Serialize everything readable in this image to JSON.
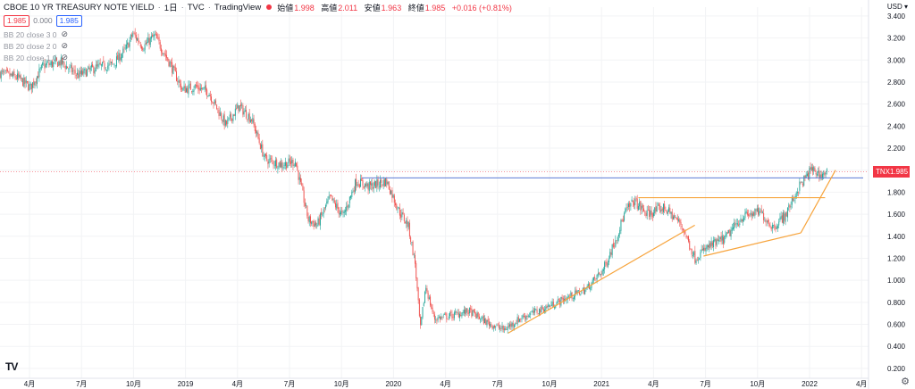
{
  "header": {
    "symbol": "CBOE 10 YR TREASURY NOTE YIELD",
    "interval": "1日",
    "source": "TVC",
    "platform": "TradingView",
    "ohlc": [
      {
        "k": "始値",
        "v": "1.998"
      },
      {
        "k": "高値",
        "v": "2.011"
      },
      {
        "k": "安値",
        "v": "1.963"
      },
      {
        "k": "終値",
        "v": "1.985"
      }
    ],
    "change": "+0.016 (+0.81%)"
  },
  "quote": {
    "sell": "1.985",
    "spread": "0.000",
    "buy": "1.985"
  },
  "indicators": [
    "BB 20 close 3 0",
    "BB 20 close 2 0",
    "BB 20 close 1 0"
  ],
  "currency": "USD",
  "price_tag": {
    "symbol": "TNX",
    "value": "1.985"
  },
  "logo_text": "TV",
  "colors": {
    "up": "#26a69a",
    "down": "#ef5350",
    "trend": "#f7a43c",
    "hline": "#5b7bd5",
    "last": "#f23645"
  },
  "chart_data": {
    "type": "candlestick",
    "y_axis_ticks": [
      "3.400",
      "3.200",
      "3.000",
      "2.800",
      "2.600",
      "2.400",
      "2.200",
      "2.000",
      "1.800",
      "1.600",
      "1.400",
      "1.200",
      "1.000",
      "0.800",
      "0.600",
      "0.400",
      "0.200"
    ],
    "x_axis_ticks": [
      "4月",
      "7月",
      "10月",
      "2019",
      "4月",
      "7月",
      "10月",
      "2020",
      "4月",
      "7月",
      "10月",
      "2021",
      "4月",
      "7月",
      "10月",
      "2022",
      "4月"
    ],
    "ylim": [
      0.11,
      3.48
    ],
    "last_price": 1.985,
    "horizontal_line": 1.93,
    "price_path": [
      {
        "t": 0.0,
        "p": 2.88
      },
      {
        "t": 0.02,
        "p": 2.84
      },
      {
        "t": 0.035,
        "p": 2.75
      },
      {
        "t": 0.05,
        "p": 2.95
      },
      {
        "t": 0.07,
        "p": 2.98
      },
      {
        "t": 0.09,
        "p": 2.86
      },
      {
        "t": 0.11,
        "p": 2.93
      },
      {
        "t": 0.13,
        "p": 2.96
      },
      {
        "t": 0.145,
        "p": 3.1
      },
      {
        "t": 0.153,
        "p": 3.24
      },
      {
        "t": 0.165,
        "p": 3.12
      },
      {
        "t": 0.178,
        "p": 3.22
      },
      {
        "t": 0.195,
        "p": 2.98
      },
      {
        "t": 0.21,
        "p": 2.73
      },
      {
        "t": 0.225,
        "p": 2.76
      },
      {
        "t": 0.24,
        "p": 2.71
      },
      {
        "t": 0.26,
        "p": 2.41
      },
      {
        "t": 0.275,
        "p": 2.58
      },
      {
        "t": 0.29,
        "p": 2.46
      },
      {
        "t": 0.305,
        "p": 2.1
      },
      {
        "t": 0.325,
        "p": 2.05
      },
      {
        "t": 0.34,
        "p": 2.08
      },
      {
        "t": 0.355,
        "p": 1.55
      },
      {
        "t": 0.365,
        "p": 1.5
      },
      {
        "t": 0.38,
        "p": 1.75
      },
      {
        "t": 0.395,
        "p": 1.58
      },
      {
        "t": 0.41,
        "p": 1.9
      },
      {
        "t": 0.425,
        "p": 1.85
      },
      {
        "t": 0.445,
        "p": 1.9
      },
      {
        "t": 0.46,
        "p": 1.62
      },
      {
        "t": 0.47,
        "p": 1.5
      },
      {
        "t": 0.478,
        "p": 1.15
      },
      {
        "t": 0.484,
        "p": 0.55
      },
      {
        "t": 0.49,
        "p": 0.95
      },
      {
        "t": 0.5,
        "p": 0.65
      },
      {
        "t": 0.52,
        "p": 0.68
      },
      {
        "t": 0.54,
        "p": 0.72
      },
      {
        "t": 0.56,
        "p": 0.62
      },
      {
        "t": 0.58,
        "p": 0.55
      },
      {
        "t": 0.6,
        "p": 0.66
      },
      {
        "t": 0.625,
        "p": 0.74
      },
      {
        "t": 0.65,
        "p": 0.83
      },
      {
        "t": 0.675,
        "p": 0.92
      },
      {
        "t": 0.695,
        "p": 1.1
      },
      {
        "t": 0.71,
        "p": 1.4
      },
      {
        "t": 0.72,
        "p": 1.62
      },
      {
        "t": 0.73,
        "p": 1.72
      },
      {
        "t": 0.745,
        "p": 1.6
      },
      {
        "t": 0.765,
        "p": 1.66
      },
      {
        "t": 0.785,
        "p": 1.5
      },
      {
        "t": 0.8,
        "p": 1.2
      },
      {
        "t": 0.815,
        "p": 1.3
      },
      {
        "t": 0.835,
        "p": 1.38
      },
      {
        "t": 0.855,
        "p": 1.58
      },
      {
        "t": 0.875,
        "p": 1.62
      },
      {
        "t": 0.89,
        "p": 1.48
      },
      {
        "t": 0.905,
        "p": 1.6
      },
      {
        "t": 0.92,
        "p": 1.85
      },
      {
        "t": 0.935,
        "p": 2.01
      },
      {
        "t": 0.945,
        "p": 1.95
      },
      {
        "t": 0.952,
        "p": 1.985
      }
    ],
    "trendlines": [
      {
        "from": [
          0.585,
          0.52
        ],
        "to": [
          0.8,
          1.5
        ]
      },
      {
        "from": [
          0.735,
          1.75
        ],
        "to": [
          0.95,
          1.75
        ]
      },
      {
        "from": [
          0.81,
          1.22
        ],
        "to": [
          0.922,
          1.43
        ]
      },
      {
        "from": [
          0.922,
          1.43
        ],
        "to": [
          0.962,
          2.0
        ]
      }
    ]
  }
}
